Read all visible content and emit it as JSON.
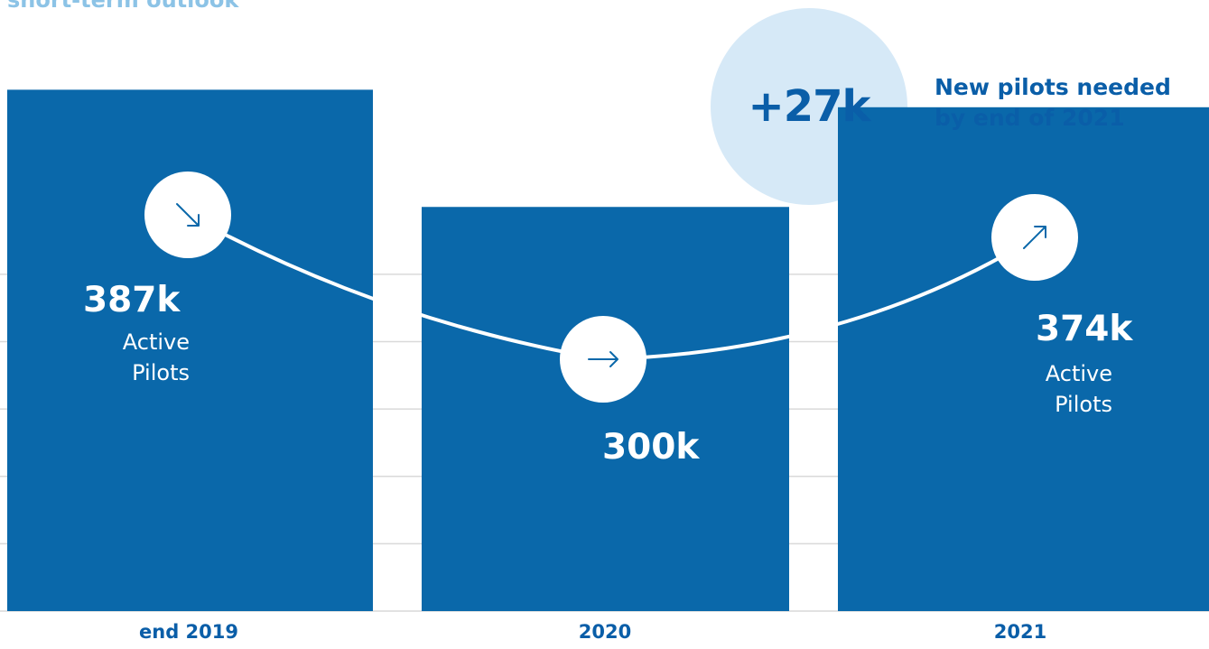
{
  "title": "short-term outlook",
  "callout": {
    "value": "+27k",
    "text_line1": "New pilots needed",
    "text_line2": "by end of 2021",
    "circle_color": "#d6e9f7"
  },
  "chart_data": {
    "type": "bar",
    "categories": [
      "end 2019",
      "2020",
      "2021"
    ],
    "values": [
      387,
      300,
      374
    ],
    "value_labels": [
      "387k",
      "300k",
      "374k"
    ],
    "bar_sublabels": [
      [
        "Active",
        "Pilots"
      ],
      [],
      [
        "Active",
        "Pilots"
      ]
    ],
    "trend_icons": [
      "arrow-down-right-icon",
      "arrow-right-icon",
      "arrow-up-right-icon"
    ],
    "ylim": [
      0,
      400
    ],
    "grid": true,
    "bar_color": "#0a68aa",
    "grid_color": "#d9d9d9"
  }
}
